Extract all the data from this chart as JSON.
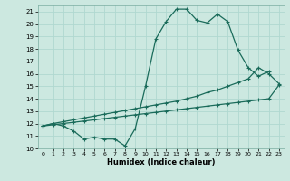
{
  "xlabel": "Humidex (Indice chaleur)",
  "bg_color": "#cce8e0",
  "line_color": "#1a6b5a",
  "grid_color": "#b0d8d0",
  "xlim": [
    -0.5,
    23.5
  ],
  "ylim": [
    10,
    21.5
  ],
  "xticks": [
    0,
    1,
    2,
    3,
    4,
    5,
    6,
    7,
    8,
    9,
    10,
    11,
    12,
    13,
    14,
    15,
    16,
    17,
    18,
    19,
    20,
    21,
    22,
    23
  ],
  "yticks": [
    10,
    11,
    12,
    13,
    14,
    15,
    16,
    17,
    18,
    19,
    20,
    21
  ],
  "line1_x": [
    0,
    1,
    2,
    3,
    4,
    5,
    6,
    7,
    8,
    9,
    10,
    11,
    12,
    13,
    14,
    15,
    16,
    17,
    18,
    19,
    20,
    21,
    22
  ],
  "line1_y": [
    11.8,
    12.0,
    11.8,
    11.4,
    10.75,
    10.9,
    10.75,
    10.75,
    10.2,
    11.6,
    15.0,
    18.8,
    20.2,
    21.2,
    21.2,
    20.3,
    20.1,
    20.8,
    20.2,
    17.9,
    16.5,
    15.8,
    16.2
  ],
  "line2_x": [
    0,
    1,
    2,
    3,
    4,
    5,
    6,
    7,
    8,
    9,
    10,
    11,
    12,
    13,
    14,
    15,
    16,
    17,
    18,
    19,
    20,
    21,
    22,
    23
  ],
  "line2_y": [
    11.8,
    12.0,
    12.15,
    12.3,
    12.45,
    12.6,
    12.75,
    12.9,
    13.05,
    13.2,
    13.35,
    13.5,
    13.65,
    13.8,
    14.0,
    14.2,
    14.5,
    14.7,
    15.0,
    15.3,
    15.6,
    16.5,
    16.0,
    15.2
  ],
  "line3_x": [
    0,
    1,
    2,
    3,
    4,
    5,
    6,
    7,
    8,
    9,
    10,
    11,
    12,
    13,
    14,
    15,
    16,
    17,
    18,
    19,
    20,
    21,
    22,
    23
  ],
  "line3_y": [
    11.8,
    11.9,
    12.0,
    12.1,
    12.2,
    12.3,
    12.4,
    12.5,
    12.6,
    12.7,
    12.8,
    12.9,
    13.0,
    13.1,
    13.2,
    13.3,
    13.4,
    13.5,
    13.6,
    13.7,
    13.8,
    13.9,
    14.0,
    15.1
  ]
}
